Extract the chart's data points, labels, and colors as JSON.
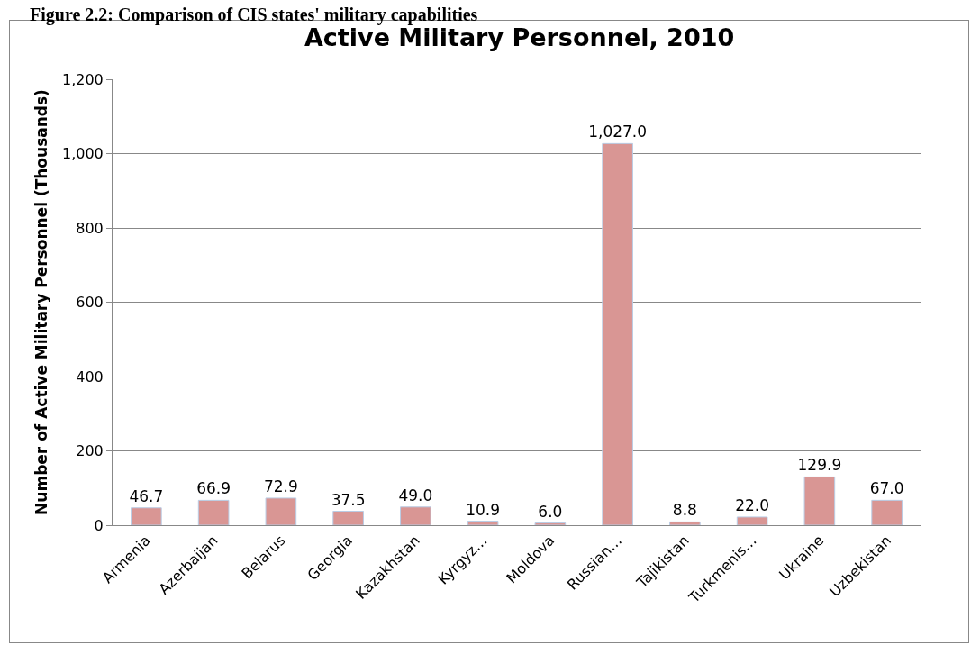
{
  "chart_data": {
    "type": "bar",
    "title": "Active Military Personnel, 2010",
    "ylabel": "Number of Active Military Personnel (Thousands)",
    "annotations": [
      "Figure 2.2: Comparison of CIS states' military capabilities"
    ],
    "categories": [
      "Armenia",
      "Azerbaijan",
      "Belarus",
      "Georgia",
      "Kazakhstan",
      "Kyrgyz…",
      "Moldova",
      "Russian…",
      "Tajikistan",
      "Turkmenis…",
      "Ukraine",
      "Uzbekistan"
    ],
    "values": [
      46.7,
      66.9,
      72.9,
      37.5,
      49.0,
      10.9,
      6.0,
      1027.0,
      8.8,
      22.0,
      129.9,
      67.0
    ],
    "value_labels": [
      "46.7",
      "66.9",
      "72.9",
      "37.5",
      "49.0",
      "10.9",
      "6.0",
      "1,027.0",
      "8.8",
      "22.0",
      "129.9",
      "67.0"
    ],
    "color": "#d99694",
    "ylim": [
      0,
      1200
    ],
    "yticks": [
      {
        "value": 0,
        "label": "0"
      },
      {
        "value": 200,
        "label": "200"
      },
      {
        "value": 400,
        "label": "400"
      },
      {
        "value": 600,
        "label": "600"
      },
      {
        "value": 800,
        "label": "800"
      },
      {
        "value": 1000,
        "label": "1,000"
      },
      {
        "value": 1200,
        "label": "1,200"
      }
    ],
    "grid": "y"
  }
}
